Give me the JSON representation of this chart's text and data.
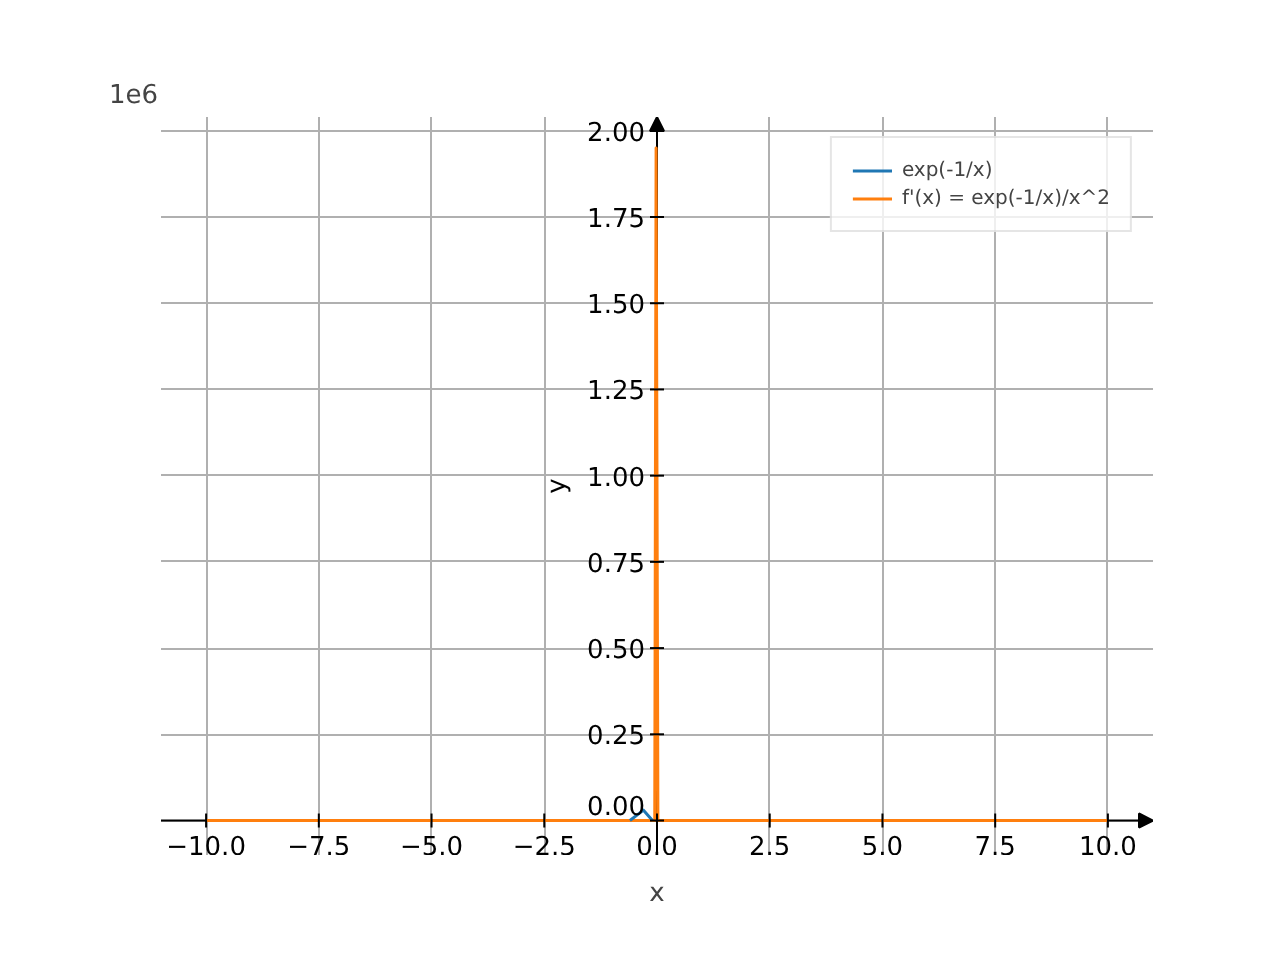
{
  "chart_data": {
    "type": "line",
    "annotations": [
      "1e6"
    ],
    "xlabel": "x",
    "ylabel": "y",
    "xlim": [
      -11,
      11
    ],
    "ylim": [
      -0.1,
      2.04
    ],
    "xticks": [
      {
        "value": -10,
        "label": "−10.0"
      },
      {
        "value": -7.5,
        "label": "−7.5"
      },
      {
        "value": -5,
        "label": "−5.0"
      },
      {
        "value": -2.5,
        "label": "−2.5"
      },
      {
        "value": 0,
        "label": "0.0"
      },
      {
        "value": 2.5,
        "label": "2.5"
      },
      {
        "value": 5,
        "label": "5.0"
      },
      {
        "value": 7.5,
        "label": "7.5"
      },
      {
        "value": 10,
        "label": "10.0"
      }
    ],
    "yticks": [
      {
        "value": 0,
        "label": "0.00"
      },
      {
        "value": 0.25,
        "label": "0.25"
      },
      {
        "value": 0.5,
        "label": "0.50"
      },
      {
        "value": 0.75,
        "label": "0.75"
      },
      {
        "value": 1,
        "label": "1.00"
      },
      {
        "value": 1.25,
        "label": "1.25"
      },
      {
        "value": 1.5,
        "label": "1.50"
      },
      {
        "value": 1.75,
        "label": "1.75"
      },
      {
        "value": 2,
        "label": "2.00"
      }
    ],
    "grid": true,
    "legend": "top right",
    "series": [
      {
        "name": "exp(-1/x)",
        "color": "#1f77b4",
        "x": [
          -0.6,
          -0.3,
          -0.1
        ],
        "values": [
          0,
          0.03,
          0
        ]
      },
      {
        "name": "f'(x) = exp(-1/x)/x^2",
        "color": "#ff7f0e",
        "x": [
          -10,
          -1,
          -0.05,
          -0.02,
          0.02,
          1,
          10
        ],
        "values": [
          0,
          0,
          0,
          1.95,
          0,
          0,
          0
        ]
      }
    ]
  }
}
